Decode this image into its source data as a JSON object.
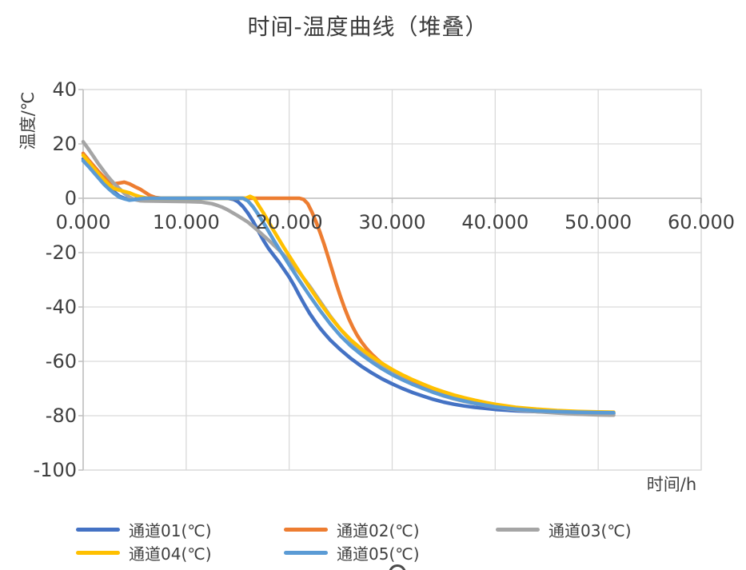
{
  "title": "时间-温度曲线（堆叠）",
  "chart_data": {
    "type": "line",
    "title": "时间-温度曲线（堆叠）",
    "xlabel": "时间/h",
    "ylabel": "温度/℃",
    "xlim": [
      0,
      60
    ],
    "ylim": [
      -100,
      40
    ],
    "grid": true,
    "legend_position": "bottom",
    "x_ticks": {
      "values": [
        0,
        10,
        20,
        30,
        40,
        50,
        60
      ],
      "labels": [
        "0.000",
        "10.000",
        "20.000",
        "30.000",
        "40.000",
        "50.000",
        "60.000"
      ]
    },
    "y_ticks": {
      "values": [
        40,
        20,
        0,
        -20,
        -40,
        -60,
        -80,
        -100
      ],
      "labels": [
        "40",
        "20",
        "0",
        "-20",
        "-40",
        "-60",
        "-80",
        "-100"
      ]
    },
    "axis_color": "#bfbfbf",
    "grid_color": "#d9d9d9",
    "series": [
      {
        "name": "通道01(℃)",
        "color": "#4472C4",
        "points": [
          [
            0,
            14.5
          ],
          [
            0.5,
            12.8
          ],
          [
            1,
            10.8
          ],
          [
            1.5,
            8.6
          ],
          [
            2,
            6.2
          ],
          [
            2.5,
            4.4
          ],
          [
            3,
            2.4
          ],
          [
            3.5,
            0.8
          ],
          [
            4,
            0
          ],
          [
            4.5,
            -0.5
          ],
          [
            5,
            -0.3
          ],
          [
            6,
            0
          ],
          [
            8,
            0
          ],
          [
            10,
            0
          ],
          [
            12,
            0
          ],
          [
            14,
            0
          ],
          [
            14.6,
            -0.4
          ],
          [
            15,
            -1.2
          ],
          [
            15.5,
            -3
          ],
          [
            16,
            -5.5
          ],
          [
            16.5,
            -8.5
          ],
          [
            17,
            -12
          ],
          [
            17.5,
            -15.5
          ],
          [
            18,
            -18.5
          ],
          [
            18.5,
            -21
          ],
          [
            19,
            -23.5
          ],
          [
            19.5,
            -26.2
          ],
          [
            20,
            -29
          ],
          [
            20.5,
            -32.2
          ],
          [
            21,
            -35.8
          ],
          [
            21.5,
            -39.2
          ],
          [
            22,
            -42.4
          ],
          [
            22.5,
            -45.2
          ],
          [
            23,
            -47.8
          ],
          [
            23.5,
            -50.1
          ],
          [
            24,
            -52.2
          ],
          [
            25,
            -55.8
          ],
          [
            26,
            -59
          ],
          [
            27,
            -61.8
          ],
          [
            28,
            -64.2
          ],
          [
            29,
            -66.4
          ],
          [
            30,
            -68.3
          ],
          [
            31,
            -70
          ],
          [
            32,
            -71.5
          ],
          [
            33,
            -72.8
          ],
          [
            34,
            -74
          ],
          [
            35,
            -75
          ],
          [
            36,
            -75.8
          ],
          [
            37,
            -76.4
          ],
          [
            38,
            -76.9
          ],
          [
            39,
            -77.3
          ],
          [
            40,
            -77.7
          ],
          [
            42,
            -78.2
          ],
          [
            44,
            -78.5
          ],
          [
            46,
            -78.8
          ],
          [
            48,
            -79
          ],
          [
            50,
            -79.15
          ],
          [
            51.5,
            -79.2
          ]
        ]
      },
      {
        "name": "通道02(℃)",
        "color": "#ED7D31",
        "points": [
          [
            0,
            16.5
          ],
          [
            0.5,
            14.2
          ],
          [
            1,
            12
          ],
          [
            1.5,
            9.8
          ],
          [
            2,
            7.8
          ],
          [
            2.5,
            6.2
          ],
          [
            3,
            5.3
          ],
          [
            3.5,
            5.6
          ],
          [
            4,
            5.9
          ],
          [
            4.5,
            5.3
          ],
          [
            5,
            4.3
          ],
          [
            5.5,
            3.4
          ],
          [
            6,
            2.2
          ],
          [
            6.5,
            1
          ],
          [
            7,
            0.3
          ],
          [
            7.5,
            0.1
          ],
          [
            8,
            0
          ],
          [
            10,
            0
          ],
          [
            12,
            0
          ],
          [
            14,
            0
          ],
          [
            16,
            0
          ],
          [
            18,
            0
          ],
          [
            20,
            0
          ],
          [
            21,
            0
          ],
          [
            21.4,
            -0.4
          ],
          [
            21.8,
            -2
          ],
          [
            22.2,
            -5
          ],
          [
            22.6,
            -8.6
          ],
          [
            23,
            -12.6
          ],
          [
            23.4,
            -17
          ],
          [
            23.8,
            -21.8
          ],
          [
            24.2,
            -26.8
          ],
          [
            24.6,
            -31.8
          ],
          [
            25,
            -36.4
          ],
          [
            25.4,
            -40.6
          ],
          [
            25.8,
            -44.4
          ],
          [
            26.2,
            -47.6
          ],
          [
            26.6,
            -50.4
          ],
          [
            27,
            -52.8
          ],
          [
            27.5,
            -55.2
          ],
          [
            28,
            -57.3
          ],
          [
            28.5,
            -59.1
          ],
          [
            29,
            -60.7
          ],
          [
            30,
            -63.5
          ],
          [
            31,
            -65.9
          ],
          [
            32,
            -68
          ],
          [
            33,
            -69.8
          ],
          [
            34,
            -71.3
          ],
          [
            35,
            -72.6
          ],
          [
            36,
            -73.7
          ],
          [
            37,
            -74.6
          ],
          [
            38,
            -75.4
          ],
          [
            39,
            -76.1
          ],
          [
            40,
            -76.7
          ],
          [
            42,
            -77.6
          ],
          [
            44,
            -78.1
          ],
          [
            46,
            -78.5
          ],
          [
            48,
            -78.8
          ],
          [
            50,
            -79
          ],
          [
            51.3,
            -79.1
          ]
        ]
      },
      {
        "name": "通道03(℃)",
        "color": "#A5A5A5",
        "points": [
          [
            0,
            20.8
          ],
          [
            0.5,
            18.2
          ],
          [
            1,
            15.4
          ],
          [
            1.5,
            12.6
          ],
          [
            2,
            10
          ],
          [
            2.5,
            7.6
          ],
          [
            3,
            5.4
          ],
          [
            3.5,
            3.6
          ],
          [
            4,
            1.8
          ],
          [
            4.5,
            0.4
          ],
          [
            5,
            -0.5
          ],
          [
            5.5,
            -0.9
          ],
          [
            6,
            -1
          ],
          [
            8,
            -1.1
          ],
          [
            10,
            -1.2
          ],
          [
            11.5,
            -1.4
          ],
          [
            12.5,
            -2
          ],
          [
            13,
            -2.6
          ],
          [
            13.5,
            -3.3
          ],
          [
            14,
            -4.2
          ],
          [
            15,
            -6.4
          ],
          [
            16,
            -8.8
          ],
          [
            17,
            -12
          ],
          [
            18,
            -15.4
          ],
          [
            19,
            -19
          ],
          [
            20,
            -23
          ],
          [
            21,
            -27.4
          ],
          [
            22,
            -32.4
          ],
          [
            23,
            -37.9
          ],
          [
            24,
            -43.4
          ],
          [
            25,
            -48.3
          ],
          [
            26,
            -52.6
          ],
          [
            27,
            -56.2
          ],
          [
            28,
            -59.3
          ],
          [
            29,
            -62
          ],
          [
            30,
            -64.4
          ],
          [
            31,
            -66.5
          ],
          [
            32,
            -68.4
          ],
          [
            33,
            -70
          ],
          [
            34,
            -71.4
          ],
          [
            35,
            -72.7
          ],
          [
            36,
            -73.8
          ],
          [
            37,
            -74.7
          ],
          [
            38,
            -75.5
          ],
          [
            39,
            -76.2
          ],
          [
            40,
            -76.8
          ],
          [
            42,
            -77.8
          ],
          [
            44,
            -78.5
          ],
          [
            46,
            -79
          ],
          [
            48,
            -79.4
          ],
          [
            50,
            -79.7
          ],
          [
            51.5,
            -79.8
          ]
        ]
      },
      {
        "name": "通道04(℃)",
        "color": "#FFC000",
        "points": [
          [
            0,
            15.8
          ],
          [
            0.5,
            13.6
          ],
          [
            1,
            11.2
          ],
          [
            1.5,
            9
          ],
          [
            2,
            6.8
          ],
          [
            2.5,
            5
          ],
          [
            3,
            3.6
          ],
          [
            3.5,
            3
          ],
          [
            4,
            2.5
          ],
          [
            4.5,
            2
          ],
          [
            5,
            1.2
          ],
          [
            5.5,
            0.6
          ],
          [
            6,
            0.2
          ],
          [
            6.5,
            0
          ],
          [
            8,
            0
          ],
          [
            10,
            0
          ],
          [
            12,
            0
          ],
          [
            14,
            0
          ],
          [
            15.8,
            0
          ],
          [
            16.2,
            0.7
          ],
          [
            16.6,
            0
          ],
          [
            17,
            -2.4
          ],
          [
            17.5,
            -5.4
          ],
          [
            18,
            -8.7
          ],
          [
            18.5,
            -11.9
          ],
          [
            19,
            -15.1
          ],
          [
            19.5,
            -18.2
          ],
          [
            20,
            -21.2
          ],
          [
            21,
            -27.1
          ],
          [
            22,
            -32.9
          ],
          [
            23,
            -38.5
          ],
          [
            24,
            -43.7
          ],
          [
            25,
            -48.3
          ],
          [
            26,
            -52.2
          ],
          [
            27,
            -55.4
          ],
          [
            28,
            -58.2
          ],
          [
            29,
            -60.7
          ],
          [
            30,
            -63
          ],
          [
            31,
            -65
          ],
          [
            32,
            -66.8
          ],
          [
            33,
            -68.4
          ],
          [
            34,
            -69.9
          ],
          [
            35,
            -71.2
          ],
          [
            36,
            -72.4
          ],
          [
            37,
            -73.4
          ],
          [
            38,
            -74.3
          ],
          [
            39,
            -75.1
          ],
          [
            40,
            -75.8
          ],
          [
            42,
            -76.9
          ],
          [
            44,
            -77.6
          ],
          [
            46,
            -78.1
          ],
          [
            48,
            -78.4
          ],
          [
            50,
            -78.6
          ],
          [
            51.5,
            -78.7
          ]
        ]
      },
      {
        "name": "通道05(℃)",
        "color": "#5B9BD5",
        "points": [
          [
            0,
            13.8
          ],
          [
            0.5,
            11.8
          ],
          [
            1,
            9.6
          ],
          [
            1.5,
            7.4
          ],
          [
            2,
            5.2
          ],
          [
            2.5,
            3.4
          ],
          [
            3,
            1.8
          ],
          [
            3.5,
            0.4
          ],
          [
            4,
            -0.2
          ],
          [
            4.5,
            -0.7
          ],
          [
            5,
            -0.5
          ],
          [
            5.5,
            -0.2
          ],
          [
            6,
            0
          ],
          [
            8,
            0
          ],
          [
            10,
            0
          ],
          [
            12,
            0
          ],
          [
            14,
            0
          ],
          [
            15.5,
            0
          ],
          [
            16,
            -1
          ],
          [
            16.5,
            -3.2
          ],
          [
            17,
            -6
          ],
          [
            17.5,
            -9
          ],
          [
            18,
            -12.2
          ],
          [
            18.5,
            -15.4
          ],
          [
            19,
            -18.5
          ],
          [
            19.5,
            -21.5
          ],
          [
            20,
            -24.5
          ],
          [
            21,
            -30.3
          ],
          [
            22,
            -35.9
          ],
          [
            23,
            -41.3
          ],
          [
            24,
            -46.3
          ],
          [
            25,
            -50.7
          ],
          [
            26,
            -54.4
          ],
          [
            27,
            -57.5
          ],
          [
            28,
            -60.2
          ],
          [
            29,
            -62.7
          ],
          [
            30,
            -64.9
          ],
          [
            31,
            -66.8
          ],
          [
            32,
            -68.5
          ],
          [
            33,
            -70
          ],
          [
            34,
            -71.4
          ],
          [
            35,
            -72.6
          ],
          [
            36,
            -73.7
          ],
          [
            37,
            -74.6
          ],
          [
            38,
            -75.4
          ],
          [
            39,
            -76.1
          ],
          [
            40,
            -76.7
          ],
          [
            42,
            -77.6
          ],
          [
            44,
            -78.2
          ],
          [
            46,
            -78.5
          ],
          [
            48,
            -78.7
          ],
          [
            50,
            -78.85
          ],
          [
            51.5,
            -78.9
          ]
        ]
      }
    ]
  }
}
